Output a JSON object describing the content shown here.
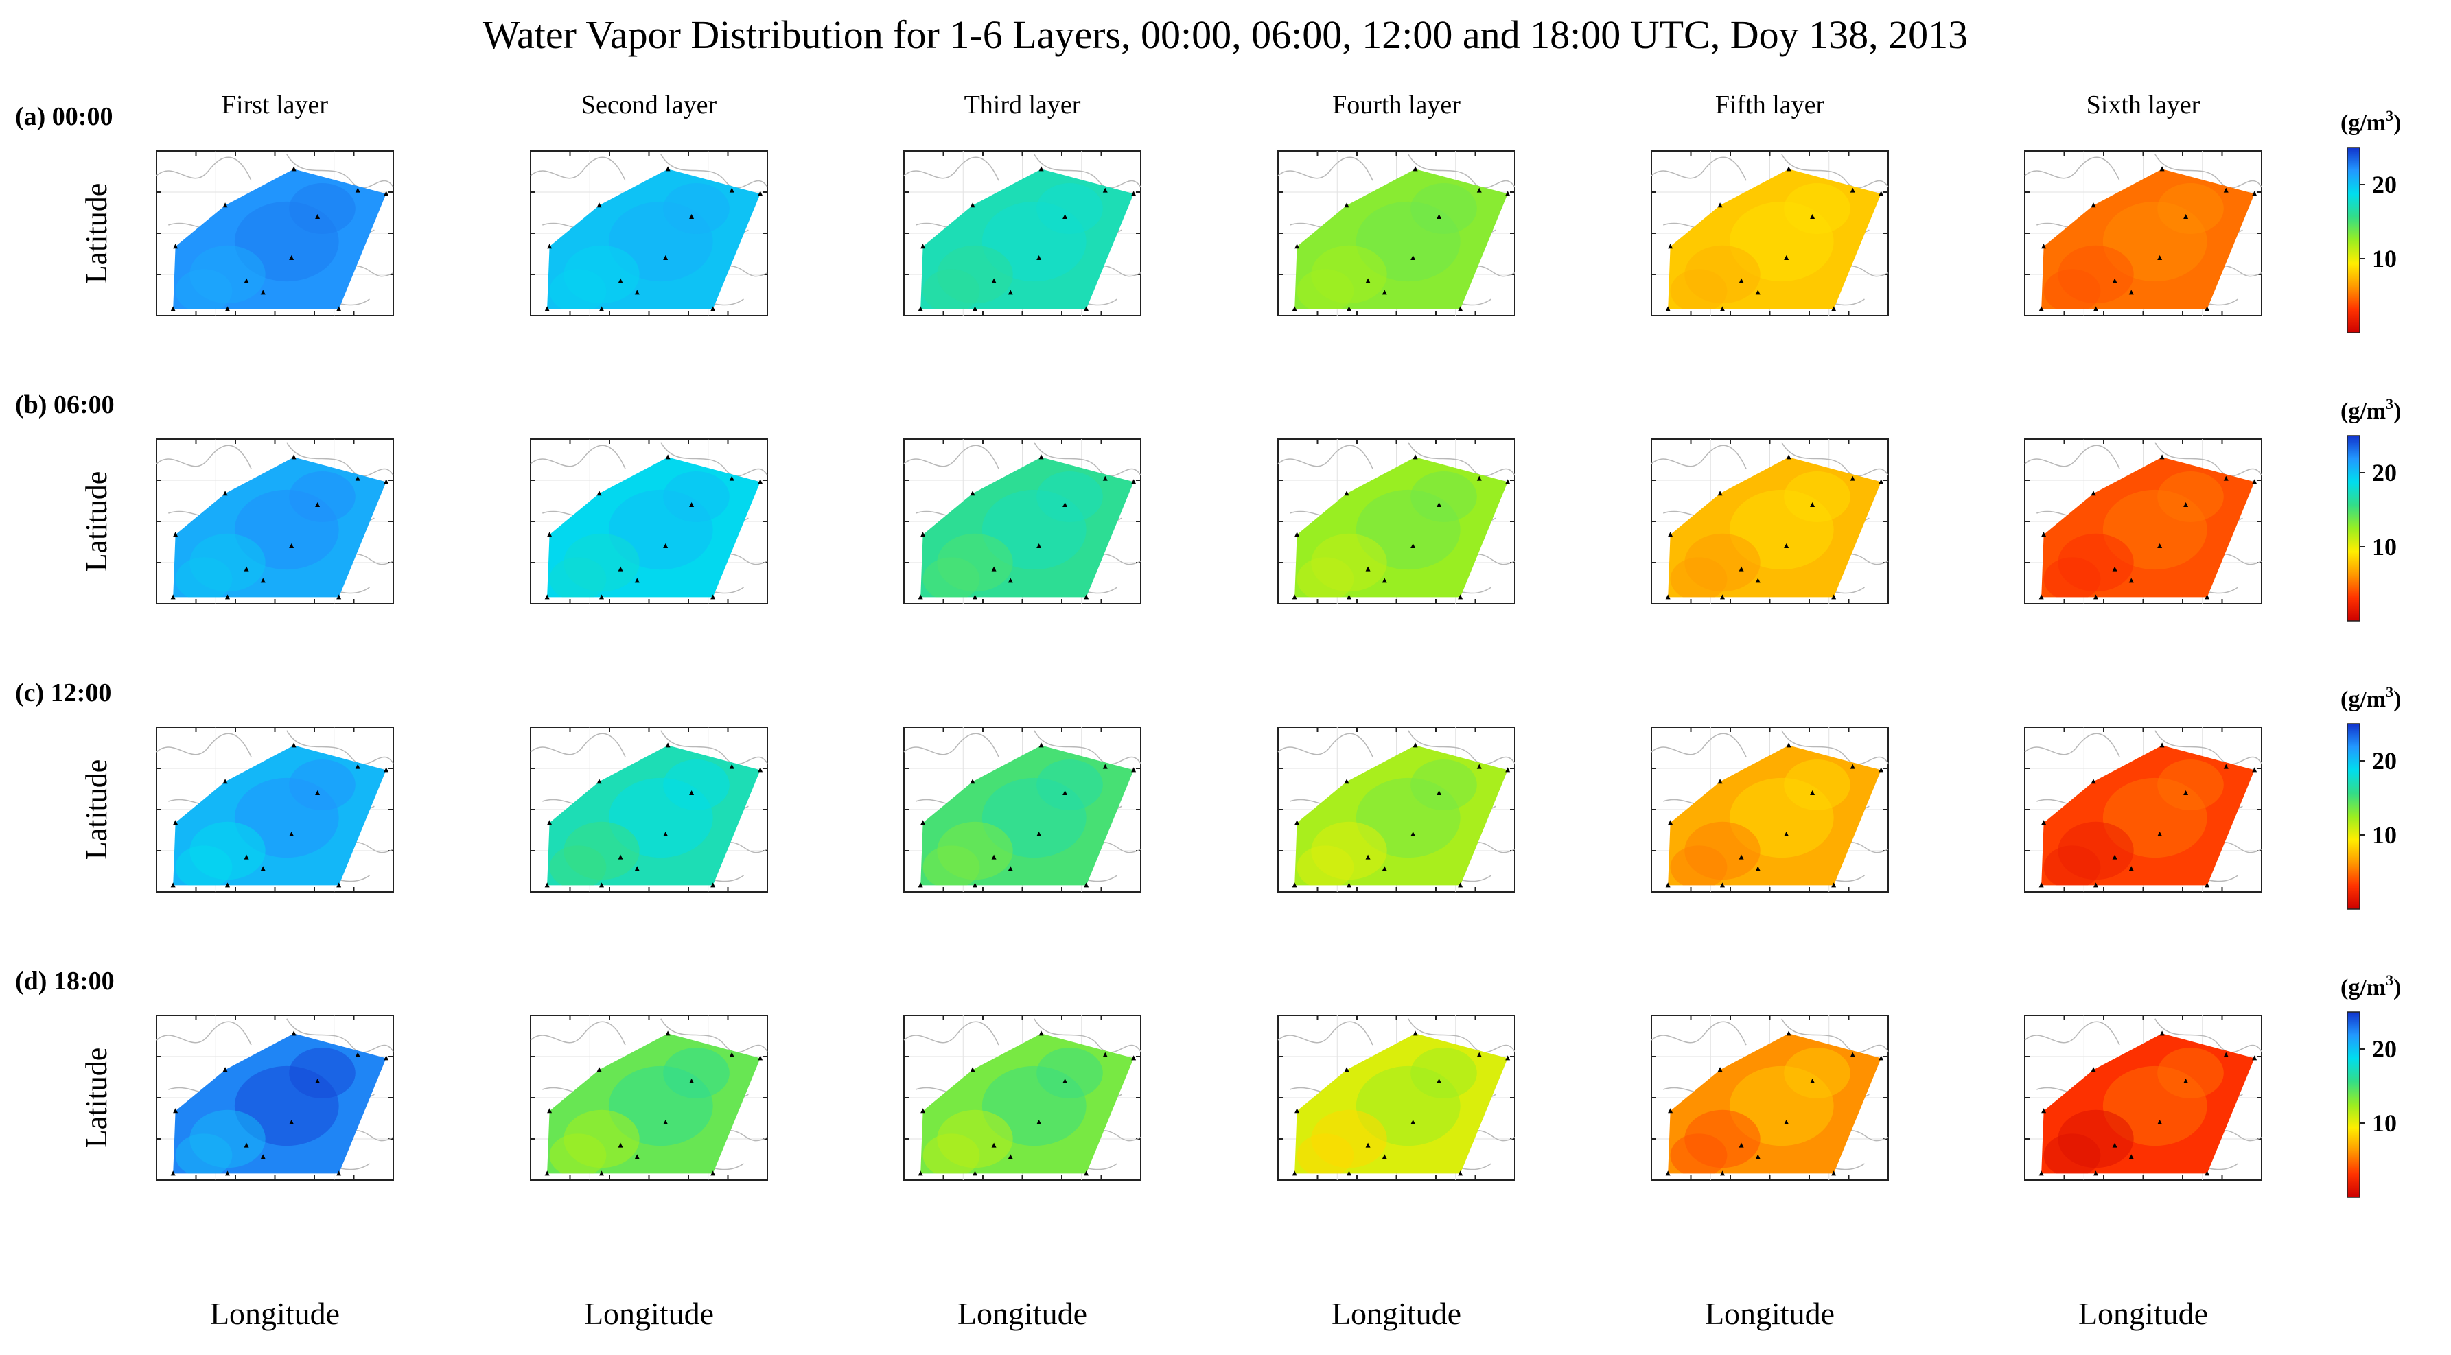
{
  "chart_data": {
    "type": "heatmap",
    "title": "Water Vapor Distribution for 1-6 Layers, 00:00, 06:00, 12:00 and 18:00 UTC, Doy 138, 2013",
    "xlabel": "Longitude",
    "ylabel": "Latitude",
    "columns": [
      "First layer",
      "Second layer",
      "Third layer",
      "Fourth layer",
      "Fifth layer",
      "Sixth layer"
    ],
    "rows": [
      {
        "label": "(a) 00:00",
        "values": [
          22,
          20,
          17,
          13,
          8,
          5
        ]
      },
      {
        "label": "(b) 06:00",
        "values": [
          21,
          19,
          16,
          12.5,
          7.5,
          4
        ]
      },
      {
        "label": "(c) 12:00",
        "values": [
          20.5,
          17,
          15,
          12,
          7,
          3.5
        ]
      },
      {
        "label": "(d) 18:00",
        "values": [
          22.5,
          14,
          13.5,
          10.5,
          6,
          3
        ]
      }
    ],
    "colorbar": {
      "unit": "(g/m",
      "unit_exp": "3",
      "unit_close": ")",
      "range": [
        0,
        25
      ],
      "ticks": [
        "10",
        "20"
      ],
      "colors": [
        "#cc0000",
        "#ff3300",
        "#ff9900",
        "#ffee00",
        "#99ee22",
        "#33dd88",
        "#00ddee",
        "#2299ff",
        "#1133cc"
      ]
    }
  }
}
